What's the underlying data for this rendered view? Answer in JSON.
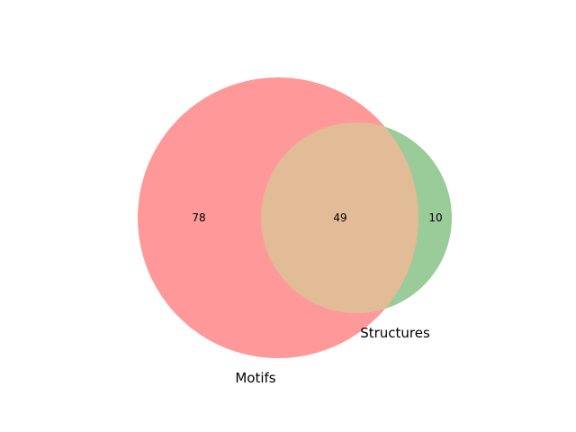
{
  "venn": {
    "sets": [
      {
        "name": "Motifs",
        "only_count": "78",
        "color": "#ff9999"
      },
      {
        "name": "Structures",
        "only_count": "10",
        "color": "#99cc99"
      }
    ],
    "intersection_count": "49",
    "intersection_color": "#e1bc96"
  }
}
